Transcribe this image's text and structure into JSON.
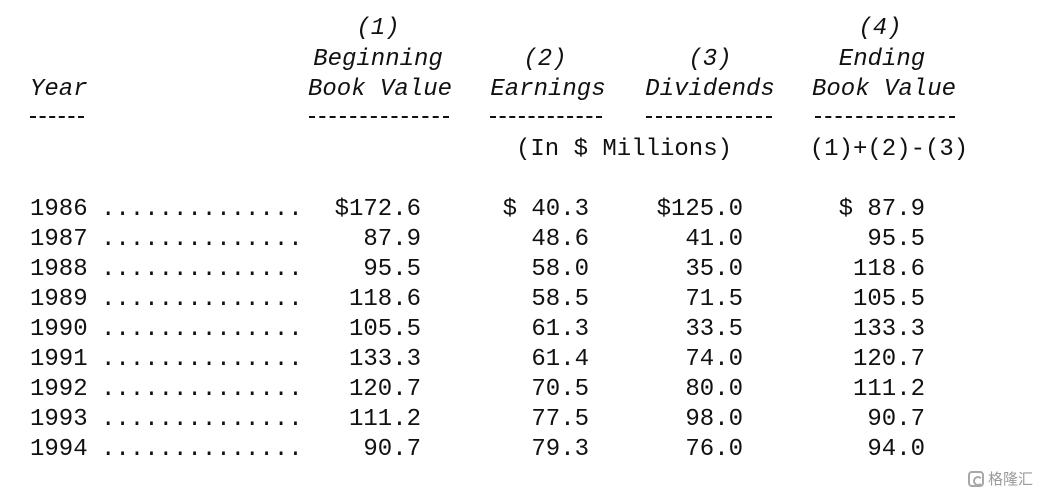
{
  "headers": {
    "year": "Year",
    "col1_num": "(1)",
    "col1_line1": "Beginning",
    "col1_line2": "Book Value",
    "col2_num": "(2)",
    "col2_label": "Earnings",
    "col3_num": "(3)",
    "col3_label": "Dividends",
    "col4_num": "(4)",
    "col4_line1": "Ending",
    "col4_line2": "Book Value",
    "units": "(In $ Millions)",
    "formula": "(1)+(2)-(3)"
  },
  "dot_leader": "..............",
  "rows": [
    {
      "year": "1986",
      "beginning": "$172.6",
      "earnings": "$ 40.3",
      "dividends": "$125.0",
      "ending": "$ 87.9"
    },
    {
      "year": "1987",
      "beginning": "87.9",
      "earnings": "48.6",
      "dividends": "41.0",
      "ending": "95.5"
    },
    {
      "year": "1988",
      "beginning": "95.5",
      "earnings": "58.0",
      "dividends": "35.0",
      "ending": "118.6"
    },
    {
      "year": "1989",
      "beginning": "118.6",
      "earnings": "58.5",
      "dividends": "71.5",
      "ending": "105.5"
    },
    {
      "year": "1990",
      "beginning": "105.5",
      "earnings": "61.3",
      "dividends": "33.5",
      "ending": "133.3"
    },
    {
      "year": "1991",
      "beginning": "133.3",
      "earnings": "61.4",
      "dividends": "74.0",
      "ending": "120.7"
    },
    {
      "year": "1992",
      "beginning": "120.7",
      "earnings": "70.5",
      "dividends": "80.0",
      "ending": "111.2"
    },
    {
      "year": "1993",
      "beginning": "111.2",
      "earnings": "77.5",
      "dividends": "98.0",
      "ending": "90.7"
    },
    {
      "year": "1994",
      "beginning": "90.7",
      "earnings": "79.3",
      "dividends": "76.0",
      "ending": "94.0"
    }
  ],
  "watermark": "格隆汇"
}
